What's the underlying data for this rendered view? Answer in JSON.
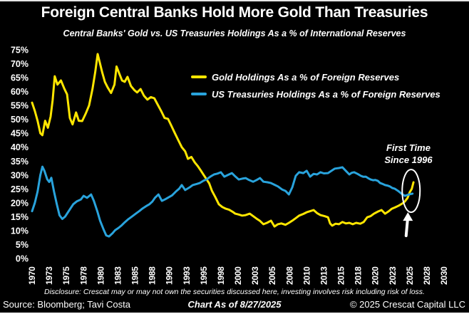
{
  "header": {
    "title": "Foreign Central Banks Hold More Gold Than Treasuries",
    "subtitle": "Central Banks' Gold vs. US Treasuries Holdings As a % of International Reserves"
  },
  "annotation": {
    "line1": "First Time",
    "line2": "Since 1996"
  },
  "footer": {
    "disclosure": "Disclosure: Crescat may or may not own the securities discussed here, investing involves risk including risk of loss.",
    "source": "Source: Bloomberg; Tavi Costa",
    "as_of": "Chart As of 8/27/2025",
    "copyright": "© 2025 Crescat Capital LLC"
  },
  "chart_data": {
    "type": "line",
    "title": "Foreign Central Banks Hold More Gold Than Treasuries",
    "subtitle": "Central Banks' Gold vs. US Treasuries Holdings As a % of International Reserves",
    "xlabel": "",
    "ylabel": "% of International Reserves",
    "ylim": [
      0,
      75
    ],
    "xlim": [
      1970,
      2030
    ],
    "grid": false,
    "legend_position": "top-center",
    "background_color": "#000000",
    "text_color": "#ffffff",
    "y_ticks": [
      "75%",
      "70%",
      "65%",
      "60%",
      "55%",
      "50%",
      "45%",
      "40%",
      "35%",
      "30%",
      "25%",
      "20%",
      "15%",
      "10%",
      "5%",
      "0%"
    ],
    "x_ticks": [
      "1970",
      "1973",
      "1975",
      "1978",
      "1980",
      "1983",
      "1985",
      "1988",
      "1990",
      "1993",
      "1995",
      "1998",
      "2000",
      "2003",
      "2005",
      "2008",
      "2010",
      "2013",
      "2015",
      "2018",
      "2020",
      "2023",
      "2025",
      "2028",
      "2030"
    ],
    "annotation": {
      "text": [
        "First Time",
        "Since 1996"
      ],
      "ellipse_center_year": 2025.2,
      "ellipse_center_pct": 24.3,
      "arrow_points_to_year": 2025.2
    },
    "series": [
      {
        "name": "Gold Holdings As a % of Foreign Reserves",
        "color": "#ffe600",
        "points": [
          [
            1970,
            56
          ],
          [
            1970.4,
            53
          ],
          [
            1970.8,
            49.5
          ],
          [
            1971.2,
            45
          ],
          [
            1971.5,
            44.3
          ],
          [
            1971.9,
            49.5
          ],
          [
            1972.3,
            47
          ],
          [
            1972.7,
            51
          ],
          [
            1973,
            57
          ],
          [
            1973.3,
            65.5
          ],
          [
            1973.7,
            62.5
          ],
          [
            1974.2,
            64
          ],
          [
            1974.7,
            61
          ],
          [
            1975.1,
            59
          ],
          [
            1975.5,
            50.5
          ],
          [
            1975.9,
            48.2
          ],
          [
            1976.4,
            52.5
          ],
          [
            1976.8,
            49.5
          ],
          [
            1977.3,
            49.4
          ],
          [
            1977.8,
            52
          ],
          [
            1978.3,
            55
          ],
          [
            1978.8,
            61
          ],
          [
            1979.2,
            67
          ],
          [
            1979.55,
            73.5
          ],
          [
            1979.9,
            70
          ],
          [
            1980.2,
            67
          ],
          [
            1980.6,
            63.5
          ],
          [
            1981,
            61.5
          ],
          [
            1981.5,
            59.5
          ],
          [
            1982,
            62.5
          ],
          [
            1982.3,
            69
          ],
          [
            1982.7,
            66.5
          ],
          [
            1983.1,
            64
          ],
          [
            1983.5,
            63.5
          ],
          [
            1983.9,
            65.3
          ],
          [
            1984.4,
            62
          ],
          [
            1984.9,
            60.5
          ],
          [
            1985.3,
            59.7
          ],
          [
            1985.8,
            60.9
          ],
          [
            1986.3,
            58.5
          ],
          [
            1986.8,
            57.1
          ],
          [
            1987.3,
            58
          ],
          [
            1987.8,
            57.6
          ],
          [
            1988.3,
            55.3
          ],
          [
            1988.8,
            53
          ],
          [
            1989.3,
            50.5
          ],
          [
            1989.8,
            50.2
          ],
          [
            1990.3,
            47.6
          ],
          [
            1990.8,
            45
          ],
          [
            1991.3,
            42.5
          ],
          [
            1991.8,
            40
          ],
          [
            1992.3,
            38.5
          ],
          [
            1992.7,
            35.8
          ],
          [
            1993.2,
            36.5
          ],
          [
            1993.7,
            34.5
          ],
          [
            1994.1,
            33.3
          ],
          [
            1994.6,
            31.5
          ],
          [
            1995,
            30
          ],
          [
            1995.4,
            28.5
          ],
          [
            1995.8,
            27
          ],
          [
            1996.2,
            24.3
          ],
          [
            1996.7,
            22
          ],
          [
            1997.2,
            19.5
          ],
          [
            1997.7,
            18.5
          ],
          [
            1998.2,
            17.9
          ],
          [
            1998.7,
            17.5
          ],
          [
            1999.2,
            16.8
          ],
          [
            1999.6,
            16.1
          ],
          [
            2000.1,
            15.8
          ],
          [
            2000.6,
            15.4
          ],
          [
            2001.1,
            15.6
          ],
          [
            2001.7,
            16.1
          ],
          [
            2002.2,
            15.2
          ],
          [
            2002.7,
            14.3
          ],
          [
            2003.2,
            13.5
          ],
          [
            2003.7,
            12.3
          ],
          [
            2004.2,
            12.8
          ],
          [
            2004.8,
            13.6
          ],
          [
            2005.3,
            11.5
          ],
          [
            2005.8,
            12.3
          ],
          [
            2006.3,
            12.6
          ],
          [
            2006.9,
            12.1
          ],
          [
            2007.4,
            12.8
          ],
          [
            2007.9,
            13.6
          ],
          [
            2008.4,
            14.5
          ],
          [
            2008.9,
            15.4
          ],
          [
            2009.5,
            16
          ],
          [
            2010,
            16.6
          ],
          [
            2010.5,
            17
          ],
          [
            2011,
            17.4
          ],
          [
            2011.5,
            16.3
          ],
          [
            2012,
            15.6
          ],
          [
            2012.6,
            15.2
          ],
          [
            2013.1,
            14.8
          ],
          [
            2013.4,
            12.6
          ],
          [
            2013.7,
            11.8
          ],
          [
            2014.2,
            12.5
          ],
          [
            2014.7,
            12.3
          ],
          [
            2015.2,
            13.1
          ],
          [
            2015.7,
            12.6
          ],
          [
            2016.2,
            12.8
          ],
          [
            2016.7,
            12.3
          ],
          [
            2017.2,
            12.8
          ],
          [
            2017.8,
            12.5
          ],
          [
            2018.3,
            13.1
          ],
          [
            2018.8,
            14.8
          ],
          [
            2019.3,
            15.2
          ],
          [
            2019.8,
            16.1
          ],
          [
            2020.4,
            16.9
          ],
          [
            2020.9,
            17.4
          ],
          [
            2021.4,
            16.1
          ],
          [
            2021.9,
            16.9
          ],
          [
            2022.4,
            17.9
          ],
          [
            2022.9,
            18.4
          ],
          [
            2023.4,
            19
          ],
          [
            2023.9,
            19.7
          ],
          [
            2024.3,
            20.5
          ],
          [
            2024.7,
            21.8
          ],
          [
            2025,
            23.8
          ],
          [
            2025.3,
            25
          ],
          [
            2025.55,
            27.4
          ]
        ]
      },
      {
        "name": "US Treasuries Holdings As a % of Foreign Reserves",
        "color": "#29a3dc",
        "points": [
          [
            1970,
            17
          ],
          [
            1970.4,
            20
          ],
          [
            1970.8,
            24
          ],
          [
            1971.2,
            30
          ],
          [
            1971.5,
            33
          ],
          [
            1971.8,
            31.5
          ],
          [
            1972.2,
            28.5
          ],
          [
            1972.5,
            27.5
          ],
          [
            1972.8,
            29
          ],
          [
            1973.2,
            24
          ],
          [
            1973.6,
            19.5
          ],
          [
            1974,
            15.5
          ],
          [
            1974.4,
            14.2
          ],
          [
            1974.8,
            15
          ],
          [
            1975.2,
            16.5
          ],
          [
            1975.6,
            18
          ],
          [
            1976,
            19.5
          ],
          [
            1976.5,
            20.5
          ],
          [
            1977.1,
            21.2
          ],
          [
            1977.5,
            22.5
          ],
          [
            1978,
            21.8
          ],
          [
            1978.6,
            23
          ],
          [
            1979,
            20.7
          ],
          [
            1979.5,
            17
          ],
          [
            1979.9,
            13.6
          ],
          [
            1980.4,
            10.5
          ],
          [
            1980.8,
            8.3
          ],
          [
            1981.2,
            7.9
          ],
          [
            1981.7,
            9
          ],
          [
            1982.1,
            10.2
          ],
          [
            1982.6,
            11
          ],
          [
            1983,
            11.8
          ],
          [
            1983.5,
            13
          ],
          [
            1984,
            14.1
          ],
          [
            1984.5,
            15
          ],
          [
            1985.1,
            16.1
          ],
          [
            1985.6,
            17
          ],
          [
            1986.1,
            18
          ],
          [
            1986.6,
            18.8
          ],
          [
            1987.1,
            19.5
          ],
          [
            1987.9,
            21.8
          ],
          [
            1988.4,
            23
          ],
          [
            1988.9,
            20.7
          ],
          [
            1989.4,
            21.3
          ],
          [
            1989.9,
            22
          ],
          [
            1990.4,
            22.7
          ],
          [
            1991,
            24.2
          ],
          [
            1991.8,
            26.4
          ],
          [
            1992.3,
            24.6
          ],
          [
            1992.9,
            25.5
          ],
          [
            1993.4,
            26.4
          ],
          [
            1994,
            26.8
          ],
          [
            1994.4,
            27.1
          ],
          [
            1995,
            28
          ],
          [
            1995.4,
            28.4
          ],
          [
            1996,
            29.5
          ],
          [
            1996.5,
            30.2
          ],
          [
            1997,
            30.5
          ],
          [
            1997.5,
            31
          ],
          [
            1998,
            29.4
          ],
          [
            1998.6,
            30.1
          ],
          [
            1999.1,
            30.7
          ],
          [
            1999.6,
            29.5
          ],
          [
            2000.1,
            28.4
          ],
          [
            2000.6,
            28.7
          ],
          [
            2001.1,
            28.9
          ],
          [
            2001.6,
            28.2
          ],
          [
            2002.2,
            27.6
          ],
          [
            2002.7,
            28.2
          ],
          [
            2003.2,
            28.9
          ],
          [
            2003.7,
            27.6
          ],
          [
            2004.3,
            27.4
          ],
          [
            2004.8,
            27.1
          ],
          [
            2005.3,
            26.5
          ],
          [
            2005.8,
            25.9
          ],
          [
            2006.4,
            24.8
          ],
          [
            2006.9,
            24.3
          ],
          [
            2007.4,
            23
          ],
          [
            2007.9,
            25.6
          ],
          [
            2008.4,
            29.7
          ],
          [
            2008.9,
            31
          ],
          [
            2009.5,
            30.7
          ],
          [
            2010,
            31.5
          ],
          [
            2010.5,
            29.4
          ],
          [
            2011,
            30.4
          ],
          [
            2011.5,
            30.2
          ],
          [
            2012,
            31
          ],
          [
            2012.5,
            30.6
          ],
          [
            2013.1,
            30.7
          ],
          [
            2013.6,
            31.5
          ],
          [
            2014.1,
            32.3
          ],
          [
            2014.7,
            32.5
          ],
          [
            2015.2,
            32.8
          ],
          [
            2015.7,
            31.5
          ],
          [
            2016.2,
            30.2
          ],
          [
            2016.9,
            31
          ],
          [
            2017.4,
            30.4
          ],
          [
            2017.9,
            29.7
          ],
          [
            2018.6,
            29.4
          ],
          [
            2019.3,
            28.4
          ],
          [
            2020,
            28.2
          ],
          [
            2020.7,
            27.1
          ],
          [
            2021.4,
            26.4
          ],
          [
            2022.1,
            25.9
          ],
          [
            2022.8,
            25.1
          ],
          [
            2023.3,
            24.3
          ],
          [
            2023.8,
            23.3
          ],
          [
            2024.3,
            22.5
          ],
          [
            2024.9,
            23
          ],
          [
            2025.4,
            23.3
          ]
        ]
      }
    ]
  }
}
